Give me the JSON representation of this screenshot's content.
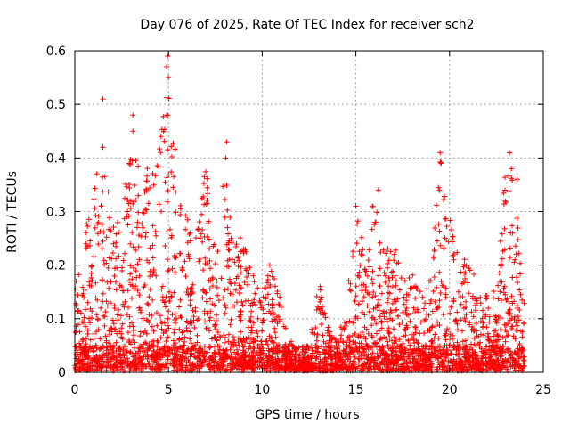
{
  "chart_data": {
    "type": "scatter",
    "title": "Day 076 of 2025, Rate Of TEC Index for receiver sch2",
    "xlabel": "GPS time / hours",
    "ylabel": "ROTI / TECUs",
    "xlim": [
      0,
      25
    ],
    "ylim": [
      0,
      0.6
    ],
    "xticks": [
      0,
      5,
      10,
      15,
      20,
      25
    ],
    "xtick_labels": [
      "0",
      "5",
      "10",
      "15",
      "20",
      "25"
    ],
    "yticks": [
      0,
      0.1,
      0.2,
      0.3,
      0.4,
      0.5,
      0.6
    ],
    "ytick_labels": [
      "0",
      "0.1",
      "0.2",
      "0.3",
      "0.4",
      "0.5",
      "0.6"
    ],
    "grid": true,
    "marker": "+",
    "color": "#ff0000",
    "envelope": {
      "x": [
        0,
        0.5,
        1,
        1.5,
        2,
        2.5,
        3,
        3.5,
        4,
        4.5,
        5,
        5.5,
        6,
        6.5,
        7,
        7.5,
        8,
        8.5,
        9,
        9.5,
        10,
        10.5,
        11,
        11.5,
        12,
        12.5,
        13,
        13.5,
        14,
        14.5,
        15,
        15.5,
        16,
        16.5,
        17,
        17.5,
        18,
        18.5,
        19,
        19.5,
        20,
        20.5,
        21,
        21.5,
        22,
        22.5,
        23,
        23.5,
        24
      ],
      "upper": [
        0.17,
        0.26,
        0.35,
        0.42,
        0.3,
        0.28,
        0.47,
        0.36,
        0.4,
        0.44,
        0.58,
        0.35,
        0.28,
        0.26,
        0.4,
        0.22,
        0.43,
        0.26,
        0.27,
        0.19,
        0.15,
        0.2,
        0.13,
        0.05,
        0.04,
        0.03,
        0.17,
        0.08,
        0.06,
        0.12,
        0.31,
        0.2,
        0.34,
        0.22,
        0.25,
        0.17,
        0.2,
        0.14,
        0.18,
        0.4,
        0.29,
        0.2,
        0.23,
        0.15,
        0.14,
        0.16,
        0.4,
        0.38,
        0.13
      ]
    },
    "highlights": [
      {
        "x": 1.5,
        "y": 0.51
      },
      {
        "x": 1.5,
        "y": 0.42
      },
      {
        "x": 3.1,
        "y": 0.48
      },
      {
        "x": 3.1,
        "y": 0.45
      },
      {
        "x": 4.95,
        "y": 0.59
      },
      {
        "x": 4.9,
        "y": 0.57
      },
      {
        "x": 5.0,
        "y": 0.55
      },
      {
        "x": 4.9,
        "y": 0.48
      },
      {
        "x": 4.6,
        "y": 0.44
      },
      {
        "x": 8.1,
        "y": 0.43
      },
      {
        "x": 8.05,
        "y": 0.4
      },
      {
        "x": 19.5,
        "y": 0.41
      },
      {
        "x": 19.55,
        "y": 0.39
      },
      {
        "x": 23.2,
        "y": 0.41
      },
      {
        "x": 23.3,
        "y": 0.38
      },
      {
        "x": 23.6,
        "y": 0.36
      },
      {
        "x": 16.2,
        "y": 0.34
      },
      {
        "x": 15.0,
        "y": 0.31
      },
      {
        "x": 13.1,
        "y": 0.16
      },
      {
        "x": 10.4,
        "y": 0.2
      }
    ]
  }
}
